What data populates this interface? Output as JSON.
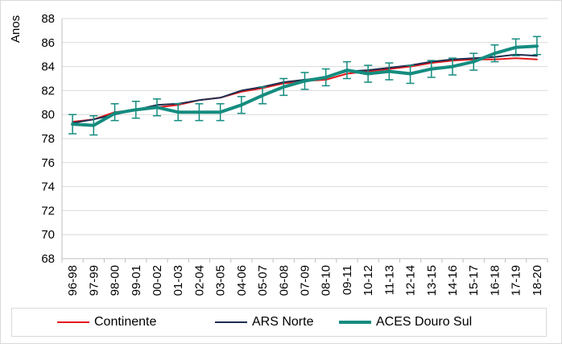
{
  "chart_data": {
    "type": "line",
    "ylabel": "Anos",
    "xlabel": "",
    "ylim": [
      68,
      88
    ],
    "yticks": [
      68,
      70,
      72,
      74,
      76,
      78,
      80,
      82,
      84,
      86,
      88
    ],
    "categories": [
      "96-98",
      "97-99",
      "98-00",
      "99-01",
      "00-02",
      "01-03",
      "02-04",
      "03-05",
      "04-06",
      "05-07",
      "06-08",
      "07-09",
      "08-10",
      "09-11",
      "10-12",
      "11-13",
      "12-14",
      "13-15",
      "14-16",
      "15-17",
      "16-18",
      "17-19",
      "18-20"
    ],
    "grid": true,
    "legend_position": "bottom",
    "series": [
      {
        "name": "Continente",
        "color": "#e31a1c",
        "values": [
          79.4,
          79.6,
          80.2,
          80.4,
          80.6,
          80.8,
          81.2,
          81.4,
          81.9,
          82.2,
          82.6,
          82.8,
          82.9,
          83.4,
          83.6,
          83.8,
          84.0,
          84.3,
          84.5,
          84.6,
          84.6,
          84.7,
          84.6
        ]
      },
      {
        "name": "ARS Norte",
        "color": "#1f2d4e",
        "values": [
          79.3,
          79.6,
          80.0,
          80.4,
          80.8,
          80.9,
          81.2,
          81.4,
          82.0,
          82.3,
          82.7,
          82.9,
          83.1,
          83.6,
          83.7,
          83.9,
          84.1,
          84.4,
          84.6,
          84.7,
          84.8,
          85.0,
          84.9
        ]
      },
      {
        "name": "ACES Douro Sul",
        "color": "#148c7f",
        "values": [
          79.2,
          79.1,
          80.1,
          80.4,
          80.6,
          80.2,
          80.2,
          80.2,
          80.8,
          81.6,
          82.3,
          82.8,
          83.1,
          83.7,
          83.4,
          83.6,
          83.4,
          83.8,
          84.0,
          84.4,
          85.1,
          85.6,
          85.7
        ],
        "error_low": [
          78.4,
          78.3,
          79.5,
          79.7,
          79.9,
          79.5,
          79.5,
          79.5,
          80.1,
          80.9,
          81.6,
          82.1,
          82.4,
          83.0,
          82.7,
          82.9,
          82.6,
          83.1,
          83.3,
          83.7,
          84.4,
          84.9,
          85.0
        ],
        "error_high": [
          80.0,
          79.9,
          80.9,
          81.1,
          81.3,
          80.9,
          80.9,
          80.9,
          81.5,
          82.3,
          83.0,
          83.5,
          83.8,
          84.4,
          84.1,
          84.3,
          84.1,
          84.5,
          84.7,
          85.1,
          85.8,
          86.3,
          86.5
        ]
      }
    ]
  }
}
